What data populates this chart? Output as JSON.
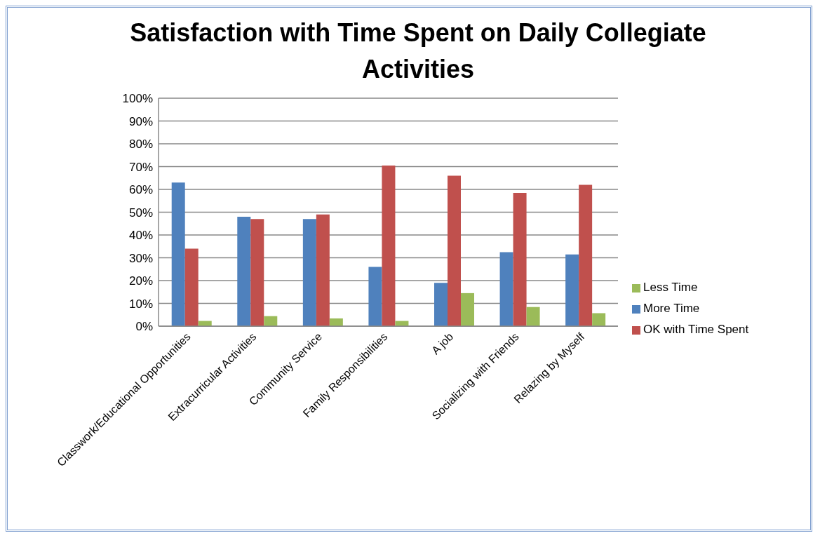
{
  "chart_data": {
    "type": "bar",
    "title": "Satisfaction with Time Spent on Daily Collegiate Activities",
    "categories": [
      "Classwork/Educational  Opportunities",
      "Extracurricular Activities",
      "Community Service",
      "Family Responsibilities",
      "A job",
      "Socializing with Friends",
      "Relazing by Myself"
    ],
    "series": [
      {
        "name": "More Time",
        "color": "#4f81bd",
        "values": [
          63,
          48,
          47,
          26,
          19,
          32.5,
          31.5
        ]
      },
      {
        "name": "OK with  Time Spent",
        "color": "#c0504d",
        "values": [
          34,
          47,
          49,
          70.5,
          66,
          58.5,
          62
        ]
      },
      {
        "name": "Less Time",
        "color": "#9bbb59",
        "values": [
          2.3,
          4.4,
          3.4,
          2.3,
          14.5,
          8.4,
          5.7
        ]
      }
    ],
    "ylim": [
      0,
      100
    ],
    "yticks": [
      {
        "value": 0,
        "label": "0%"
      },
      {
        "value": 10,
        "label": "10%"
      },
      {
        "value": 20,
        "label": "20%"
      },
      {
        "value": 30,
        "label": "30%"
      },
      {
        "value": 40,
        "label": "40%"
      },
      {
        "value": 50,
        "label": "50%"
      },
      {
        "value": 60,
        "label": "60%"
      },
      {
        "value": 70,
        "label": "70%"
      },
      {
        "value": 80,
        "label": "80%"
      },
      {
        "value": 90,
        "label": "90%"
      },
      {
        "value": 100,
        "label": "100%"
      }
    ],
    "grid": "y",
    "legend": "right"
  }
}
